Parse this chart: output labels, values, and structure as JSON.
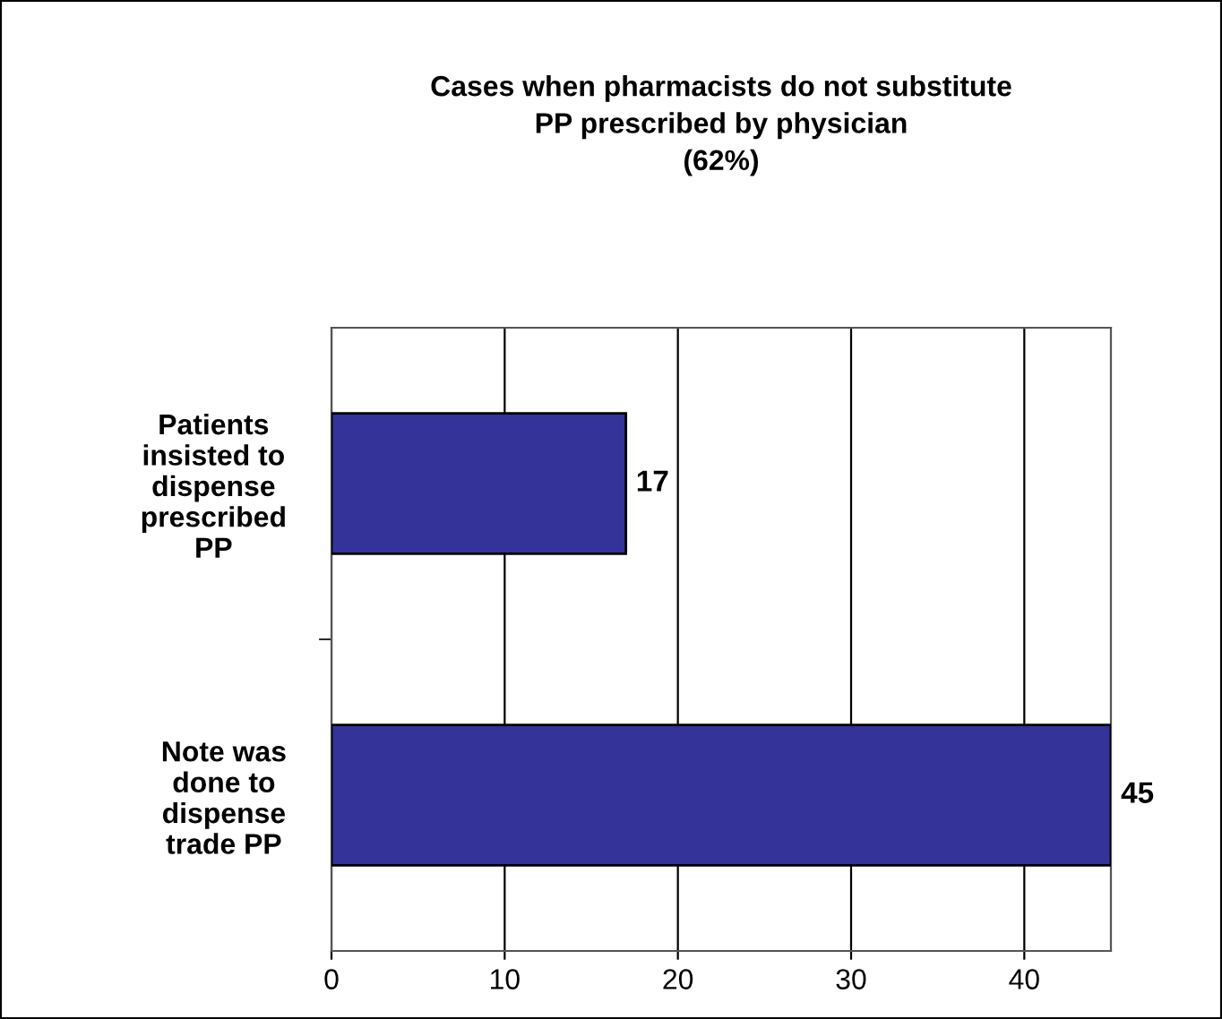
{
  "chart_data": {
    "type": "bar",
    "orientation": "horizontal",
    "title": "Cases when pharmacists do not substitute\nPP prescribed by physician\n(62%)",
    "categories": [
      "Patients\ninsisted to\ndispense\nprescribed\nPP",
      "Note was\ndone to\ndispense\ntrade PP"
    ],
    "values": [
      17,
      45
    ],
    "color": "#333399",
    "xlim": [
      0,
      45
    ],
    "xticks": [
      0,
      10,
      20,
      30,
      40
    ],
    "grid": "x",
    "data_labels": true,
    "legend": false
  }
}
